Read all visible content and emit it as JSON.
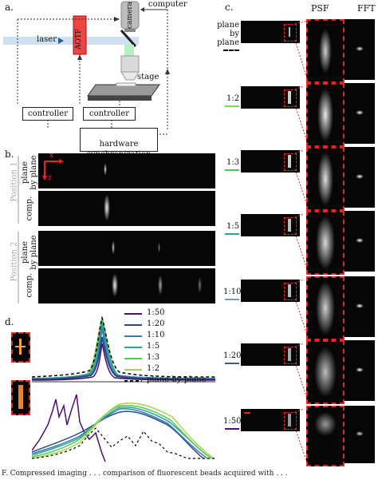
{
  "panel_a": {
    "letter": "a.",
    "labels": {
      "computer": "computer",
      "camera": "camera",
      "laser": "laser",
      "aotf": "AOTF",
      "stage": "stage",
      "controller_left": "controller",
      "controller_right": "controller",
      "hardware_sync": "hardware\nsynchronization"
    }
  },
  "panel_b": {
    "letter": "b.",
    "position1": "Position 1",
    "position2": "Position 2",
    "plane_by_plane": "plane\nby plane",
    "comp": "comp.",
    "axis_x": "x",
    "axis_z": "z"
  },
  "panel_c": {
    "letter": "c.",
    "col_psf": "PSF",
    "col_fft": "FFT",
    "rows": [
      {
        "label": "plane\nby\nplane",
        "color": "#000000",
        "dashed": true
      },
      {
        "label": "1:2",
        "color": "#7ed957",
        "dashed": false
      },
      {
        "label": "1:3",
        "color": "#4fbf5f",
        "dashed": false
      },
      {
        "label": "1:5",
        "color": "#2aa39a",
        "dashed": false
      },
      {
        "label": "1:10",
        "color": "#5aa7c9",
        "dashed": false
      },
      {
        "label": "1:20",
        "color": "#2b5f9a",
        "dashed": false
      },
      {
        "label": "1:50",
        "color": "#4b0f6e",
        "dashed": false
      }
    ]
  },
  "panel_d": {
    "letter": "d.",
    "legend": [
      {
        "label": "1:50",
        "color": "#4b0f6e"
      },
      {
        "label": "1:20",
        "color": "#2b4a8c"
      },
      {
        "label": "1:10",
        "color": "#3b7bb0"
      },
      {
        "label": "1:5",
        "color": "#26a89a"
      },
      {
        "label": "1:3",
        "color": "#5cc45c"
      },
      {
        "label": "1:2",
        "color": "#a5d64a"
      },
      {
        "label": "plane-by-plane",
        "color": "#000000"
      }
    ]
  },
  "caption_fragment": "F.   Compressed imaging . . . comparison of fluorescent beads acquired with . . . "
}
